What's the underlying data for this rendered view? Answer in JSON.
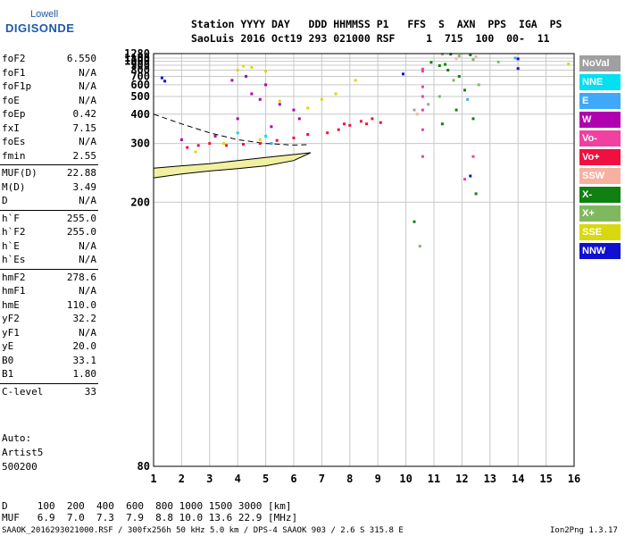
{
  "logo": {
    "top": "Lowell",
    "main": "DIGISONDE"
  },
  "header": {
    "line1": "Station YYYY DAY   DDD HHMMSS P1   FFS  S  AXN  PPS  IGA  PS",
    "line2": "SaoLuis 2016 Oct19 293 021000 RSF     1  715  100  00-  11"
  },
  "params": [
    {
      "label": "foF2",
      "value": "6.550"
    },
    {
      "label": "foF1",
      "value": "N/A"
    },
    {
      "label": "foF1p",
      "value": "N/A"
    },
    {
      "label": "foE",
      "value": "N/A"
    },
    {
      "label": "foEp",
      "value": "0.42"
    },
    {
      "label": "fxI",
      "value": "7.15"
    },
    {
      "label": "foEs",
      "value": "N/A"
    },
    {
      "label": "fmin",
      "value": "2.55"
    },
    {
      "label": "MUF(D)",
      "value": "22.88"
    },
    {
      "label": "M(D)",
      "value": "3.49"
    },
    {
      "label": "D",
      "value": "N/A"
    },
    {
      "label": "h`F",
      "value": "255.0"
    },
    {
      "label": "h`F2",
      "value": "255.0"
    },
    {
      "label": "h`E",
      "value": "N/A"
    },
    {
      "label": "h`Es",
      "value": "N/A"
    },
    {
      "label": "hmF2",
      "value": "278.6"
    },
    {
      "label": "hmF1",
      "value": "N/A"
    },
    {
      "label": "hmE",
      "value": "110.0"
    },
    {
      "label": "yF2",
      "value": "32.2"
    },
    {
      "label": "yF1",
      "value": "N/A"
    },
    {
      "label": "yE",
      "value": "20.0"
    },
    {
      "label": "B0",
      "value": "33.1"
    },
    {
      "label": "B1",
      "value": "1.80"
    },
    {
      "label": "C-level",
      "value": "33"
    }
  ],
  "auto": [
    "Auto:",
    "Artist5",
    "500200"
  ],
  "footer": {
    "d_line": "D     100  200  400  600  800 1000 1500 3000 [km]",
    "muf_line": "MUF   6.9  7.0  7.3  7.9  8.8 10.0 13.6 22.9 [MHz]",
    "info_line": "SAAOK_2016293021000.RSF / 300fx256h 50 kHz 5.0 km / DPS-4 SAAOK 903 / 2.6 S 315.8 E",
    "version": "Ion2Png 1.3.17"
  },
  "legend": [
    {
      "label": "NoVal",
      "color": "#a0a0a0"
    },
    {
      "label": "NNE",
      "color": "#00e0f0"
    },
    {
      "label": "E",
      "color": "#40a8f8"
    },
    {
      "label": "W",
      "color": "#b000b0"
    },
    {
      "label": "Vo-",
      "color": "#f040a0"
    },
    {
      "label": "Vo+",
      "color": "#f01040"
    },
    {
      "label": "SSW",
      "color": "#f8b0a0"
    },
    {
      "label": "X-",
      "color": "#108010"
    },
    {
      "label": "X+",
      "color": "#80b860"
    },
    {
      "label": "SSE",
      "color": "#d8d810"
    },
    {
      "label": "NNW",
      "color": "#1010d0"
    }
  ],
  "chart_data": {
    "type": "scatter",
    "title": "",
    "xlabel": "",
    "ylabel": "",
    "xlim": [
      1,
      16
    ],
    "ylim": [
      80,
      1280
    ],
    "x_ticks": [
      1,
      2,
      3,
      4,
      5,
      6,
      7,
      8,
      9,
      10,
      11,
      12,
      13,
      14,
      15,
      16
    ],
    "y_ticks": [
      80,
      200,
      300,
      400,
      500,
      600,
      700,
      800,
      900,
      1000,
      1100,
      1280
    ],
    "y_scale": "reciprocal",
    "grid": true,
    "legend_position": "right",
    "series": [
      {
        "name": "Vo+",
        "color": "#f01040",
        "points": [
          [
            7.2,
            330
          ],
          [
            7.6,
            340
          ],
          [
            8.0,
            355
          ],
          [
            8.4,
            370
          ],
          [
            8.8,
            380
          ],
          [
            9.1,
            365
          ],
          [
            6.5,
            325
          ],
          [
            6.0,
            315
          ],
          [
            5.4,
            308
          ],
          [
            4.8,
            300
          ],
          [
            4.2,
            298
          ],
          [
            3.6,
            295
          ],
          [
            3.0,
            300
          ],
          [
            2.6,
            295
          ],
          [
            2.2,
            290
          ],
          [
            7.8,
            360
          ],
          [
            8.6,
            360
          ]
        ]
      },
      {
        "name": "W",
        "color": "#b000b0",
        "points": [
          [
            2.0,
            310
          ],
          [
            3.2,
            320
          ],
          [
            4.0,
            380
          ],
          [
            4.5,
            520
          ],
          [
            5.0,
            600
          ],
          [
            5.5,
            450
          ],
          [
            6.0,
            420
          ],
          [
            3.8,
            650
          ],
          [
            4.3,
            700
          ],
          [
            5.2,
            350
          ],
          [
            6.2,
            380
          ],
          [
            4.8,
            480
          ]
        ]
      },
      {
        "name": "SSE",
        "color": "#d8d810",
        "points": [
          [
            4.0,
            800
          ],
          [
            4.5,
            850
          ],
          [
            5.0,
            780
          ],
          [
            4.2,
            880
          ],
          [
            3.5,
            300
          ],
          [
            4.8,
            310
          ],
          [
            6.5,
            430
          ],
          [
            7.0,
            480
          ],
          [
            7.5,
            520
          ],
          [
            5.5,
            470
          ],
          [
            2.5,
            280
          ],
          [
            8.2,
            650
          ],
          [
            15.8,
            930
          ]
        ]
      },
      {
        "name": "X-",
        "color": "#108010",
        "points": [
          [
            12.3,
            1220
          ],
          [
            11.6,
            1250
          ],
          [
            11.4,
            920
          ],
          [
            11.2,
            890
          ],
          [
            10.9,
            970
          ],
          [
            11.5,
            800
          ],
          [
            11.9,
            700
          ],
          [
            12.1,
            550
          ],
          [
            11.8,
            420
          ],
          [
            12.4,
            380
          ],
          [
            12.5,
            210
          ],
          [
            11.3,
            360
          ],
          [
            10.3,
            180
          ]
        ]
      },
      {
        "name": "X+",
        "color": "#80b860",
        "points": [
          [
            11.9,
            1180
          ],
          [
            12.4,
            1050
          ],
          [
            11.7,
            650
          ],
          [
            12.6,
            600
          ],
          [
            11.2,
            500
          ],
          [
            13.3,
            980
          ],
          [
            10.5,
            160
          ]
        ]
      },
      {
        "name": "NNW",
        "color": "#1010d0",
        "points": [
          [
            1.3,
            680
          ],
          [
            1.4,
            640
          ],
          [
            9.9,
            735
          ],
          [
            14.0,
            830
          ],
          [
            14.0,
            1075
          ],
          [
            12.3,
            235
          ]
        ]
      },
      {
        "name": "E",
        "color": "#40a8f8",
        "points": [
          [
            13.9,
            1100
          ],
          [
            12.2,
            480
          ],
          [
            5.2,
            300
          ]
        ]
      },
      {
        "name": "Vo-",
        "color": "#f040a0",
        "points": [
          [
            10.6,
            580
          ],
          [
            10.6,
            500
          ],
          [
            10.6,
            420
          ],
          [
            10.6,
            340
          ],
          [
            10.6,
            270
          ],
          [
            10.6,
            820
          ],
          [
            10.6,
            780
          ],
          [
            12.1,
            230
          ],
          [
            12.4,
            270
          ]
        ]
      },
      {
        "name": "SSW",
        "color": "#f8b0a0",
        "points": [
          [
            11.8,
            1080
          ],
          [
            12.5,
            1150
          ],
          [
            10.4,
            400
          ]
        ]
      },
      {
        "name": "NoVal",
        "color": "#a0a0a0",
        "points": [
          [
            10.3,
            420
          ],
          [
            10.8,
            450
          ],
          [
            11.3,
            1250
          ]
        ]
      },
      {
        "name": "NNE",
        "color": "#00e0f0",
        "points": [
          [
            4.0,
            330
          ],
          [
            5.0,
            320
          ]
        ]
      }
    ]
  }
}
